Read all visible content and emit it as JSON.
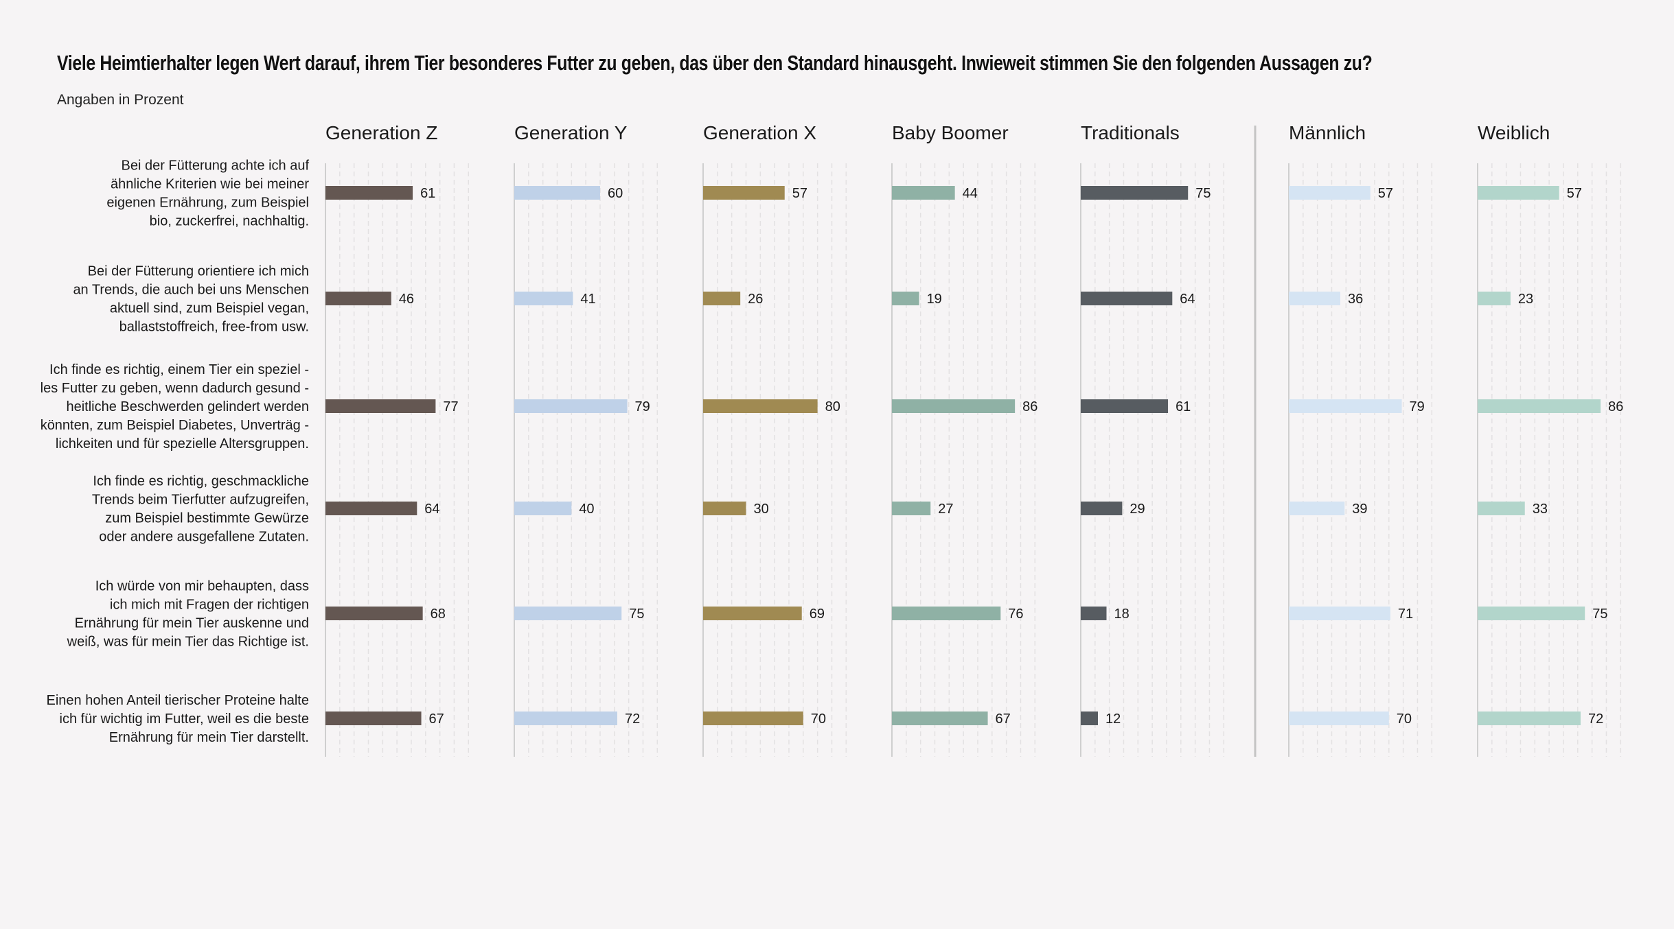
{
  "title": "Viele Heimtierhalter legen Wert darauf, ihrem Tier besonderes Futter zu geben, das über den Standard hinausgeht. Inwieweit stimmen Sie den folgenden Aussagen zu?",
  "subtitle": "Angaben in Prozent",
  "chart_data": {
    "type": "bar",
    "orientation": "horizontal",
    "xlim": [
      0,
      100
    ],
    "grid": true,
    "categories": [
      [
        "Bei der Fütterung achte ich auf",
        "ähnliche Kriterien wie bei meiner",
        "eigenen Ernährung, zum Beispiel",
        "bio, zuckerfrei, nachhaltig."
      ],
      [
        "Bei der Fütterung orientiere ich mich",
        "an Trends, die auch bei uns Menschen",
        "aktuell sind, zum Beispiel vegan,",
        "ballaststoffreich, free-from usw."
      ],
      [
        "Ich finde es richtig, einem Tier ein speziel -",
        "les Futter zu geben, wenn dadurch gesund -",
        "heitliche Beschwerden gelindert werden",
        "könnten, zum Beispiel Diabetes, Unverträg -",
        "lichkeiten und für spezielle Altersgruppen."
      ],
      [
        "Ich finde es richtig, geschmackliche",
        "Trends beim Tierfutter aufzugreifen,",
        "zum Beispiel bestimmte Gewürze",
        "oder andere ausgefallene Zutaten."
      ],
      [
        "Ich würde von mir behaupten, dass",
        "ich mich mit Fragen der richtigen",
        "Ernährung für mein Tier auskenne und",
        "weiß, was für mein Tier das Richtige ist."
      ],
      [
        "Einen hohen Anteil tierischer Proteine halte",
        "ich für wichtig im Futter, weil es die beste",
        "Ernährung für mein Tier darstellt."
      ]
    ],
    "series": [
      {
        "name": "Generation Z",
        "color": "#645752",
        "values": [
          61,
          46,
          77,
          64,
          68,
          67
        ]
      },
      {
        "name": "Generation Y",
        "color": "#bfd1e8",
        "values": [
          60,
          41,
          79,
          40,
          75,
          72
        ]
      },
      {
        "name": "Generation X",
        "color": "#a08a52",
        "values": [
          57,
          26,
          80,
          30,
          69,
          70
        ]
      },
      {
        "name": "Baby Boomer",
        "color": "#8fb1a5",
        "values": [
          44,
          19,
          86,
          27,
          76,
          67
        ]
      },
      {
        "name": "Traditionals",
        "color": "#575c61",
        "values": [
          75,
          64,
          61,
          29,
          18,
          12
        ]
      },
      {
        "name": "Männlich",
        "color": "#d5e4f3",
        "values": [
          57,
          36,
          79,
          39,
          71,
          70
        ]
      },
      {
        "name": "Weiblich",
        "color": "#b2d5cb",
        "values": [
          57,
          23,
          86,
          33,
          75,
          72
        ]
      }
    ]
  }
}
